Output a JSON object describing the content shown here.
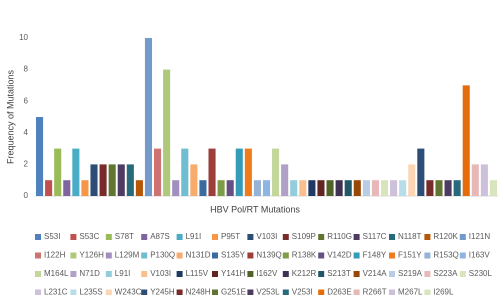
{
  "chart_data": {
    "type": "bar",
    "x_label": "HBV Pol/RT Mutations",
    "y_label": "Frequency of Mutations",
    "categories": [
      null
    ],
    "ylim": [
      0,
      10
    ],
    "yticks": [
      0,
      2,
      4,
      6,
      8,
      10
    ],
    "grid": false,
    "series": [
      {
        "name": "S53I",
        "color": "#4f81bd",
        "values": [
          5
        ]
      },
      {
        "name": "S53C",
        "color": "#c0504d",
        "values": [
          1
        ]
      },
      {
        "name": "S78T",
        "color": "#9bbb59",
        "values": [
          3
        ]
      },
      {
        "name": "A87S",
        "color": "#8064a2",
        "values": [
          1
        ]
      },
      {
        "name": "L91I",
        "color": "#4bacc6",
        "values": [
          3
        ]
      },
      {
        "name": "P95T",
        "color": "#f79646",
        "values": [
          1
        ]
      },
      {
        "name": "V103I",
        "color": "#2c4d75",
        "values": [
          2
        ]
      },
      {
        "name": "S109P",
        "color": "#772c2a",
        "values": [
          2
        ]
      },
      {
        "name": "R110G",
        "color": "#5f7530",
        "values": [
          2
        ]
      },
      {
        "name": "S117C",
        "color": "#4d3b62",
        "values": [
          2
        ]
      },
      {
        "name": "N118T",
        "color": "#276a7c",
        "values": [
          2
        ]
      },
      {
        "name": "R120K",
        "color": "#b65708",
        "values": [
          1
        ]
      },
      {
        "name": "I121N",
        "color": "#729aca",
        "values": [
          10
        ]
      },
      {
        "name": "I122H",
        "color": "#cd7371",
        "values": [
          3
        ]
      },
      {
        "name": "Y126H",
        "color": "#afc97a",
        "values": [
          8
        ]
      },
      {
        "name": "L129M",
        "color": "#a18fbf",
        "values": [
          1
        ]
      },
      {
        "name": "P130Q",
        "color": "#6fbdd1",
        "values": [
          3
        ]
      },
      {
        "name": "N131D",
        "color": "#f9ab6b",
        "values": [
          2
        ]
      },
      {
        "name": "S135Y",
        "color": "#3a6a9f",
        "values": [
          1
        ]
      },
      {
        "name": "N139Q",
        "color": "#9d3e3b",
        "values": [
          3
        ]
      },
      {
        "name": "R138K",
        "color": "#7d9c45",
        "values": [
          1
        ]
      },
      {
        "name": "V142D",
        "color": "#664f83",
        "values": [
          1
        ]
      },
      {
        "name": "F148Y",
        "color": "#359bb8",
        "values": [
          3
        ]
      },
      {
        "name": "F151Y",
        "color": "#ee7b1c",
        "values": [
          3
        ]
      },
      {
        "name": "R153Q",
        "color": "#95b3d7",
        "values": [
          1
        ]
      },
      {
        "name": "I163V",
        "color": "#8db4e2",
        "values": [
          1
        ]
      },
      {
        "name": "M164L",
        "color": "#c4d79b",
        "values": [
          3
        ]
      },
      {
        "name": "N71D",
        "color": "#b1a0c7",
        "values": [
          2
        ]
      },
      {
        "name": "L91I",
        "color": "#92cddc",
        "values": [
          1
        ]
      },
      {
        "name": "V103I",
        "color": "#fabf8f",
        "values": [
          1
        ]
      },
      {
        "name": "L115V",
        "color": "#1f3864",
        "values": [
          1
        ]
      },
      {
        "name": "Y141H",
        "color": "#632523",
        "values": [
          1
        ]
      },
      {
        "name": "I162V",
        "color": "#4f6228",
        "values": [
          1
        ]
      },
      {
        "name": "K212R",
        "color": "#3f3151",
        "values": [
          1
        ]
      },
      {
        "name": "S213T",
        "color": "#205867",
        "values": [
          1
        ]
      },
      {
        "name": "V214A",
        "color": "#974806",
        "values": [
          1
        ]
      },
      {
        "name": "S219A",
        "color": "#b8cce4",
        "values": [
          1
        ]
      },
      {
        "name": "S223A",
        "color": "#e6b8b7",
        "values": [
          1
        ]
      },
      {
        "name": "S230L",
        "color": "#d8e4bc",
        "values": [
          1
        ]
      },
      {
        "name": "L231C",
        "color": "#ccc0da",
        "values": [
          1
        ]
      },
      {
        "name": "L235S",
        "color": "#b7dee8",
        "values": [
          1
        ]
      },
      {
        "name": "W243C",
        "color": "#fcd5b4",
        "values": [
          2
        ]
      },
      {
        "name": "Y245H",
        "color": "#2c4d75",
        "values": [
          3
        ]
      },
      {
        "name": "N248H",
        "color": "#772c2a",
        "values": [
          1
        ]
      },
      {
        "name": "G251E",
        "color": "#5f7530",
        "values": [
          1
        ]
      },
      {
        "name": "V253L",
        "color": "#4d3b62",
        "values": [
          1
        ]
      },
      {
        "name": "V253I",
        "color": "#276a7c",
        "values": [
          1
        ]
      },
      {
        "name": "D263E",
        "color": "#e46c0a",
        "values": [
          7
        ]
      },
      {
        "name": "R266T",
        "color": "#e6b8b7",
        "values": [
          2
        ]
      },
      {
        "name": "M267L",
        "color": "#ccc0da",
        "values": [
          2
        ]
      },
      {
        "name": "I269L",
        "color": "#d8e4bc",
        "values": [
          1
        ]
      }
    ]
  }
}
